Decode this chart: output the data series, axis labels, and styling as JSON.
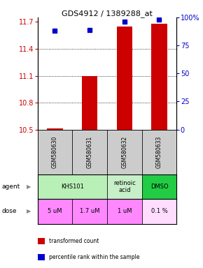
{
  "title": "GDS4912 / 1389288_at",
  "samples": [
    "GSM580630",
    "GSM580631",
    "GSM580632",
    "GSM580633"
  ],
  "bar_values": [
    10.515,
    11.1,
    11.65,
    11.68
  ],
  "bar_bottom": 10.5,
  "blue_dot_pcts": [
    88,
    89,
    96,
    98
  ],
  "ylim": [
    10.5,
    11.75
  ],
  "yticks_left": [
    10.5,
    10.8,
    11.1,
    11.4,
    11.7
  ],
  "yticks_right": [
    0,
    25,
    50,
    75,
    100
  ],
  "bar_color": "#cc0000",
  "dot_color": "#0000cc",
  "agent_row": [
    {
      "label": "KHS101",
      "span": [
        0,
        2
      ],
      "color": "#b8f0b8"
    },
    {
      "label": "retinoic\nacid",
      "span": [
        2,
        3
      ],
      "color": "#c8f0c8"
    },
    {
      "label": "DMSO",
      "span": [
        3,
        4
      ],
      "color": "#22cc44"
    }
  ],
  "dose_row": [
    {
      "label": "5 uM",
      "span": [
        0,
        1
      ],
      "color": "#ff88ff"
    },
    {
      "label": "1.7 uM",
      "span": [
        1,
        2
      ],
      "color": "#ff88ff"
    },
    {
      "label": "1 uM",
      "span": [
        2,
        3
      ],
      "color": "#ff88ff"
    },
    {
      "label": "0.1 %",
      "span": [
        3,
        4
      ],
      "color": "#ffddff"
    }
  ],
  "sample_box_color": "#cccccc",
  "left_tick_color": "#cc0000",
  "right_tick_color": "#0000cc",
  "bar_width": 0.45
}
